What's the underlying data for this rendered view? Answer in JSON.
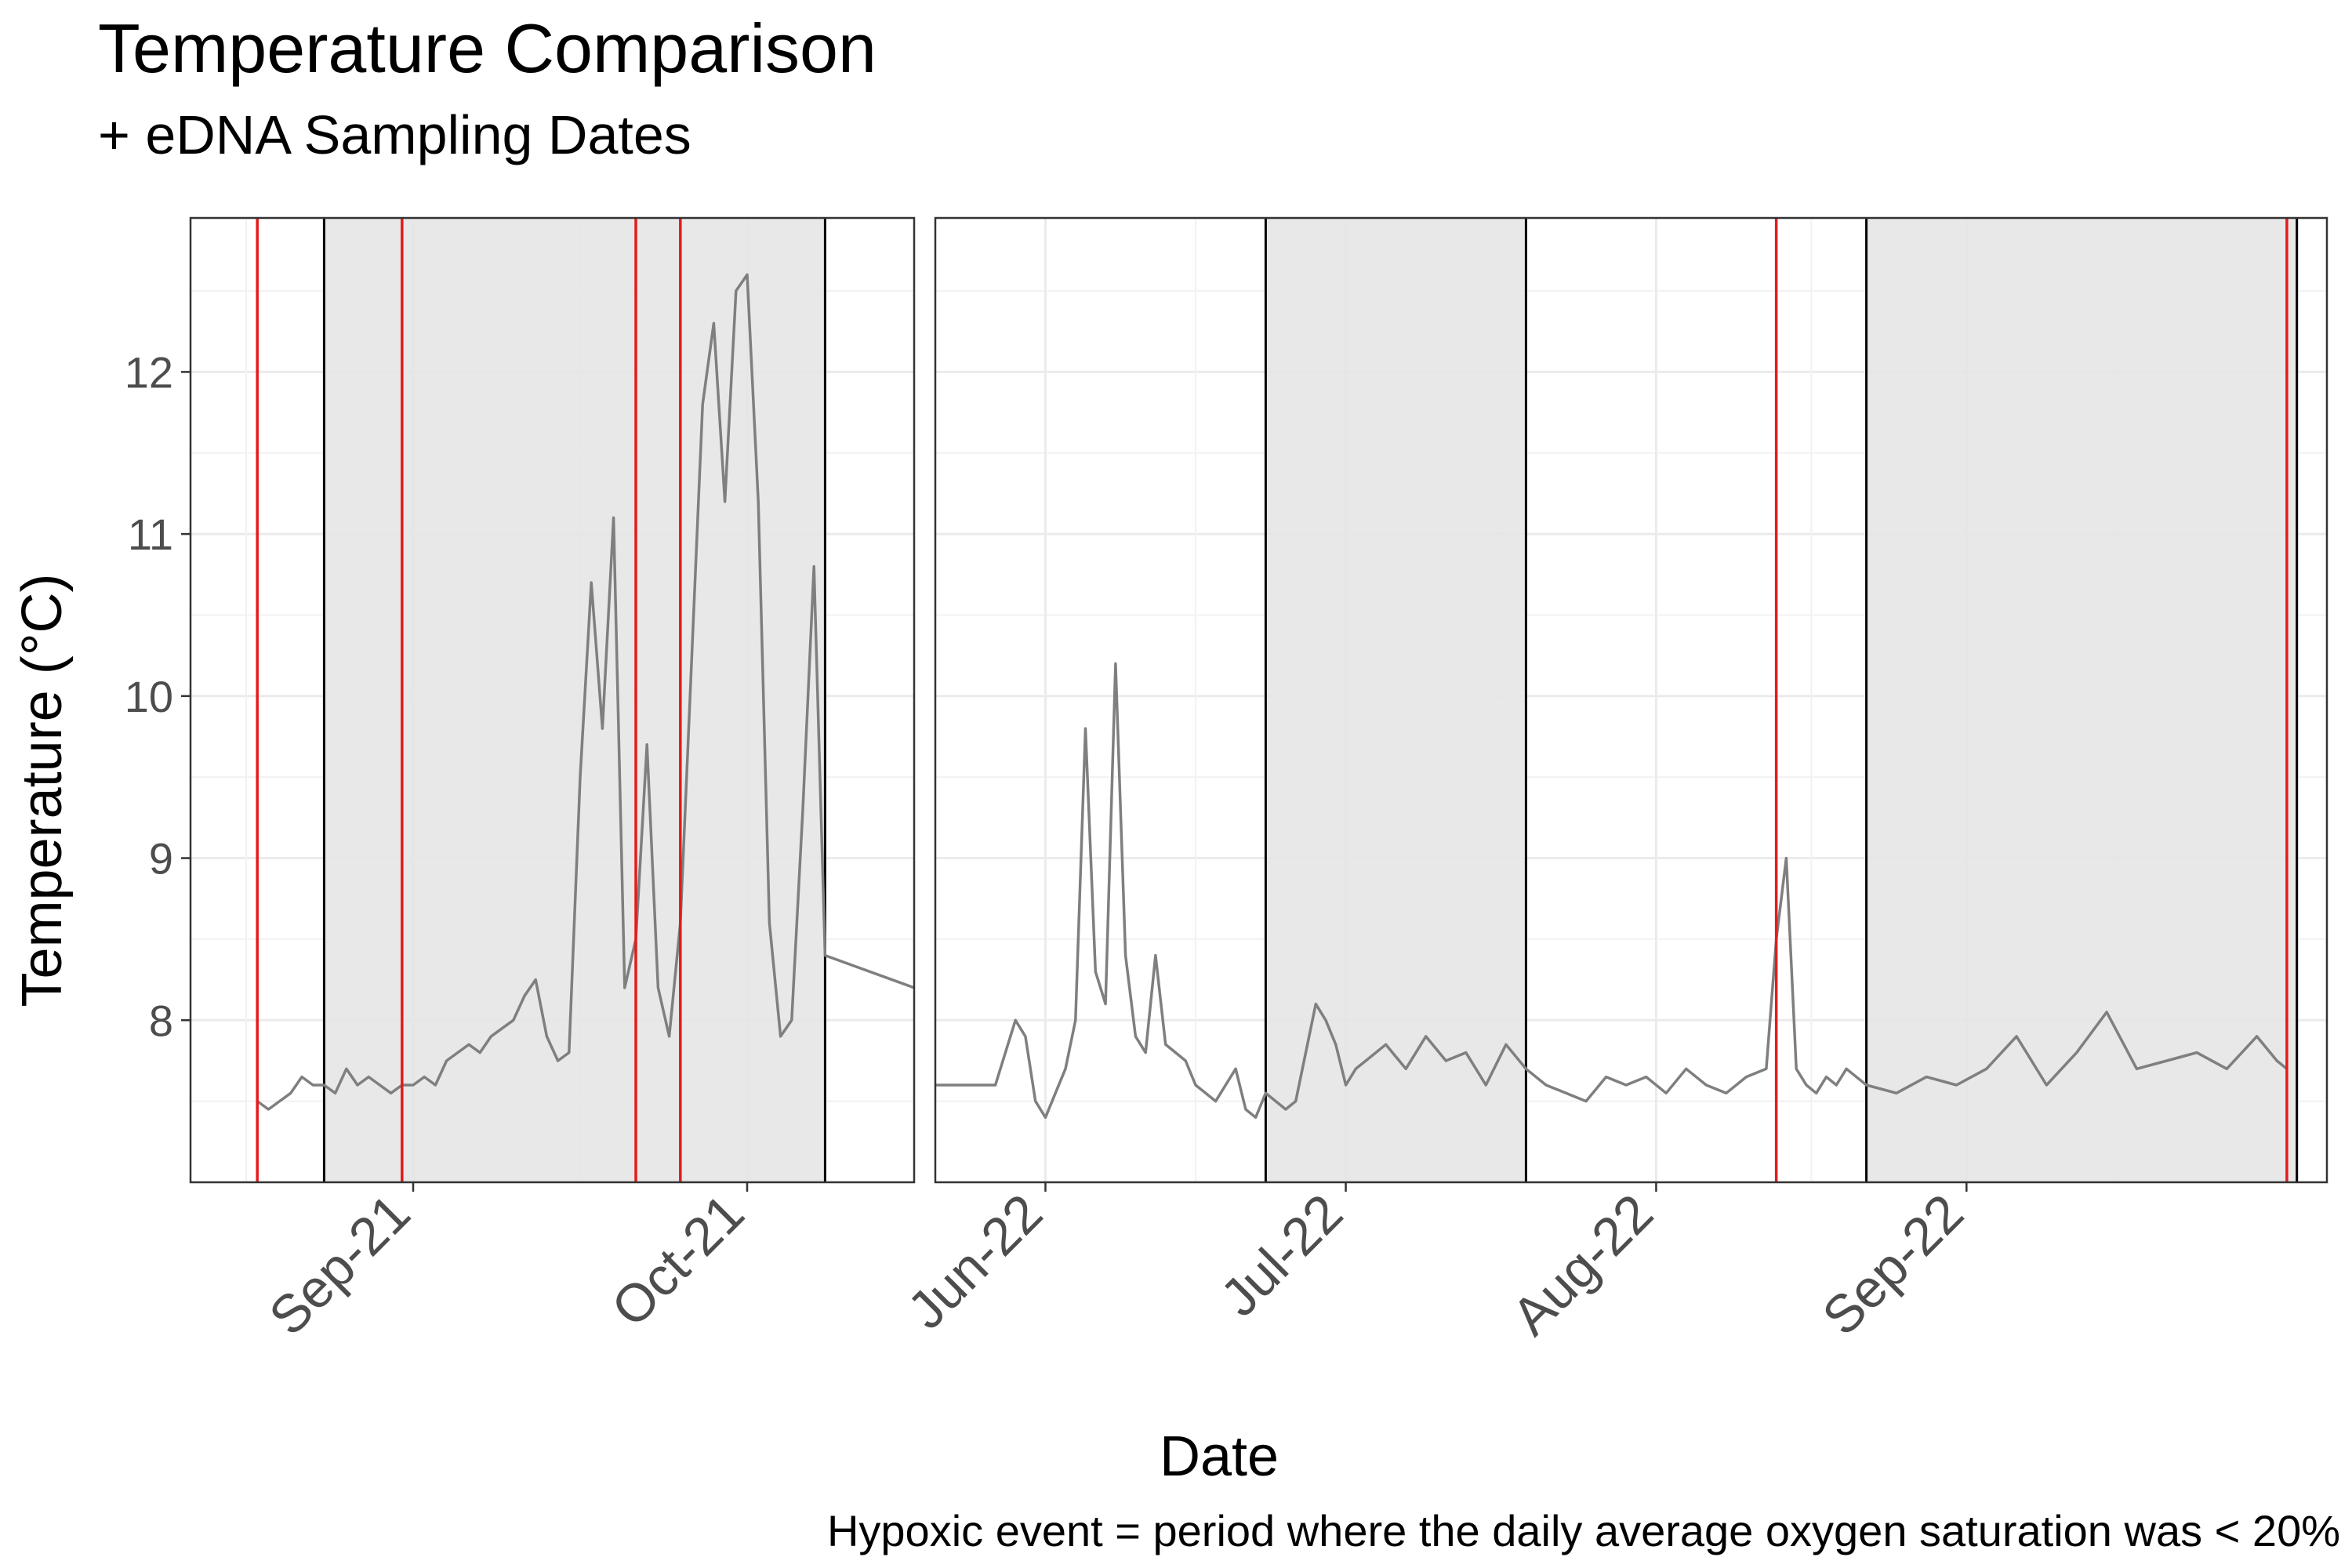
{
  "chart_data": {
    "type": "line",
    "title": "Temperature Comparison",
    "subtitle": "+ eDNA Sampling Dates",
    "xlabel": "Date",
    "ylabel": "Temperature (°C)",
    "caption": "Hypoxic event = period where the daily average oxygen saturation was < 20%",
    "ylim": [
      7.0,
      12.95
    ],
    "y_ticks": [
      8,
      9,
      10,
      11,
      12
    ],
    "grid": true,
    "colors": {
      "line": "#7f7f7f",
      "sampling_date": "#e41a1c",
      "hypoxic_band": "#e5e5e5",
      "hypoxic_border": "#000000"
    },
    "panels": [
      {
        "xlim": [
          "2021-08-12",
          "2021-10-16"
        ],
        "x_ticks": [
          {
            "date": "2021-09-01",
            "label": "Sep-21"
          },
          {
            "date": "2021-10-01",
            "label": "Oct-21"
          }
        ],
        "hypoxic_events": [
          [
            "2021-08-24",
            "2021-10-08"
          ]
        ],
        "sampling_dates": [
          "2021-08-18",
          "2021-08-31",
          "2021-09-21",
          "2021-09-25"
        ],
        "series": [
          {
            "x": [
              "2021-08-18",
              "2021-08-19",
              "2021-08-20",
              "2021-08-21",
              "2021-08-22",
              "2021-08-23",
              "2021-08-24",
              "2021-08-25",
              "2021-08-26",
              "2021-08-27",
              "2021-08-28",
              "2021-08-29",
              "2021-08-30",
              "2021-08-31",
              "2021-09-01",
              "2021-09-02",
              "2021-09-03",
              "2021-09-04",
              "2021-09-05",
              "2021-09-06",
              "2021-09-07",
              "2021-09-08",
              "2021-09-09",
              "2021-09-10",
              "2021-09-11",
              "2021-09-12",
              "2021-09-13",
              "2021-09-14",
              "2021-09-15",
              "2021-09-16",
              "2021-09-17",
              "2021-09-18",
              "2021-09-19",
              "2021-09-20",
              "2021-09-21",
              "2021-09-22",
              "2021-09-23",
              "2021-09-24",
              "2021-09-25",
              "2021-09-26",
              "2021-09-27",
              "2021-09-28",
              "2021-09-29",
              "2021-09-30",
              "2021-10-01",
              "2021-10-02",
              "2021-10-03",
              "2021-10-04",
              "2021-10-05",
              "2021-10-06",
              "2021-10-07",
              "2021-10-08",
              "2021-10-16"
            ],
            "y": [
              7.5,
              7.45,
              7.5,
              7.55,
              7.65,
              7.6,
              7.6,
              7.55,
              7.7,
              7.6,
              7.65,
              7.6,
              7.55,
              7.6,
              7.6,
              7.65,
              7.6,
              7.75,
              7.8,
              7.85,
              7.8,
              7.9,
              7.95,
              8.0,
              8.15,
              8.25,
              7.9,
              7.75,
              7.8,
              9.5,
              10.7,
              9.8,
              11.1,
              8.2,
              8.5,
              9.7,
              8.2,
              7.9,
              8.6,
              10.2,
              11.8,
              12.3,
              11.2,
              12.5,
              12.6,
              11.2,
              8.6,
              7.9,
              8.0,
              9.3,
              10.8,
              8.4,
              8.2
            ]
          }
        ]
      },
      {
        "xlim": [
          "2022-05-21",
          "2022-10-07"
        ],
        "x_ticks": [
          {
            "date": "2022-06-01",
            "label": "Jun-22"
          },
          {
            "date": "2022-07-01",
            "label": "Jul-22"
          },
          {
            "date": "2022-08-01",
            "label": "Aug-22"
          },
          {
            "date": "2022-09-01",
            "label": "Sep-22"
          }
        ],
        "hypoxic_events": [
          [
            "2022-06-23",
            "2022-07-19"
          ],
          [
            "2022-08-22",
            "2022-10-04"
          ]
        ],
        "sampling_dates": [
          "2022-08-13",
          "2022-10-03"
        ],
        "series": [
          {
            "x": [
              "2022-05-21",
              "2022-05-27",
              "2022-05-28",
              "2022-05-29",
              "2022-05-30",
              "2022-05-31",
              "2022-06-01",
              "2022-06-02",
              "2022-06-03",
              "2022-06-04",
              "2022-06-05",
              "2022-06-06",
              "2022-06-07",
              "2022-06-08",
              "2022-06-09",
              "2022-06-10",
              "2022-06-11",
              "2022-06-12",
              "2022-06-13",
              "2022-06-14",
              "2022-06-15",
              "2022-06-16",
              "2022-06-17",
              "2022-06-18",
              "2022-06-19",
              "2022-06-20",
              "2022-06-21",
              "2022-06-22",
              "2022-06-23",
              "2022-06-24",
              "2022-06-25",
              "2022-06-26",
              "2022-06-27",
              "2022-06-28",
              "2022-06-29",
              "2022-06-30",
              "2022-07-01",
              "2022-07-02",
              "2022-07-03",
              "2022-07-05",
              "2022-07-07",
              "2022-07-09",
              "2022-07-11",
              "2022-07-13",
              "2022-07-15",
              "2022-07-17",
              "2022-07-19",
              "2022-07-21",
              "2022-07-23",
              "2022-07-25",
              "2022-07-27",
              "2022-07-29",
              "2022-07-31",
              "2022-08-02",
              "2022-08-04",
              "2022-08-06",
              "2022-08-08",
              "2022-08-10",
              "2022-08-12",
              "2022-08-13",
              "2022-08-14",
              "2022-08-15",
              "2022-08-16",
              "2022-08-17",
              "2022-08-18",
              "2022-08-19",
              "2022-08-20",
              "2022-08-22",
              "2022-08-25",
              "2022-08-28",
              "2022-08-31",
              "2022-09-03",
              "2022-09-06",
              "2022-09-09",
              "2022-09-12",
              "2022-09-15",
              "2022-09-18",
              "2022-09-21",
              "2022-09-24",
              "2022-09-27",
              "2022-09-30",
              "2022-10-02",
              "2022-10-03"
            ],
            "y": [
              7.6,
              7.6,
              7.8,
              8.0,
              7.9,
              7.5,
              7.4,
              7.55,
              7.7,
              8.0,
              9.8,
              8.3,
              8.1,
              10.2,
              8.4,
              7.9,
              7.8,
              8.4,
              7.85,
              7.8,
              7.75,
              7.6,
              7.55,
              7.5,
              7.6,
              7.7,
              7.45,
              7.4,
              7.55,
              7.5,
              7.45,
              7.5,
              7.8,
              8.1,
              8.0,
              7.85,
              7.6,
              7.7,
              7.75,
              7.85,
              7.7,
              7.9,
              7.75,
              7.8,
              7.6,
              7.85,
              7.7,
              7.6,
              7.55,
              7.5,
              7.65,
              7.6,
              7.65,
              7.55,
              7.7,
              7.6,
              7.55,
              7.65,
              7.7,
              8.5,
              9.0,
              7.7,
              7.6,
              7.55,
              7.65,
              7.6,
              7.7,
              7.6,
              7.55,
              7.65,
              7.6,
              7.7,
              7.9,
              7.6,
              7.8,
              8.05,
              7.7,
              7.75,
              7.8,
              7.7,
              7.9,
              7.75,
              7.7
            ]
          }
        ]
      }
    ]
  }
}
